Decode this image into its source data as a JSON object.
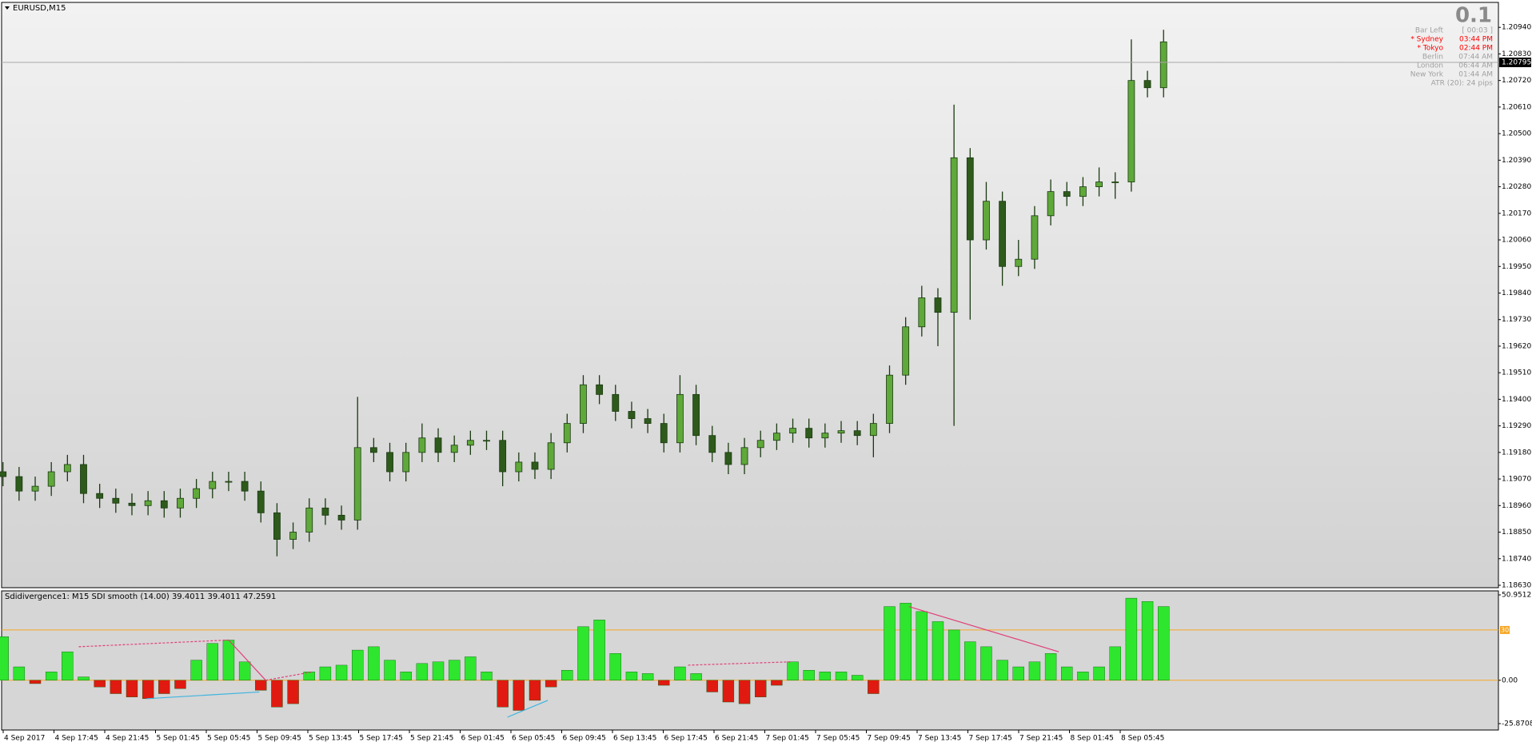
{
  "chart_data": [
    {
      "type": "candlestick",
      "title": "EURUSD,M15",
      "open": [
        1.191,
        1.1908,
        1.1902,
        1.1904,
        1.191,
        1.1913,
        1.1901,
        1.1899,
        1.1897,
        1.1896,
        1.1898,
        1.1895,
        1.1899,
        1.1903,
        1.1906,
        1.1906,
        1.1902,
        1.1893,
        1.1882,
        1.1885,
        1.1895,
        1.1892,
        1.189,
        1.192,
        1.1918,
        1.191,
        1.1918,
        1.1924,
        1.1918,
        1.1921,
        1.1923,
        1.1923,
        1.191,
        1.1914,
        1.1911,
        1.1922,
        1.193,
        1.1946,
        1.1942,
        1.1935,
        1.1932,
        1.193,
        1.1922,
        1.1942,
        1.1925,
        1.1918,
        1.1913,
        1.192,
        1.1923,
        1.1926,
        1.1928,
        1.1924,
        1.1926,
        1.1927,
        1.1925,
        1.193,
        1.195,
        1.197,
        1.1982,
        1.1976,
        1.204,
        1.2006,
        1.2022,
        1.1995,
        1.1998,
        1.2016,
        1.2026,
        1.2024,
        1.2028,
        1.203,
        1.203,
        1.2072,
        1.2069
      ],
      "high": [
        1.1914,
        1.1912,
        1.1908,
        1.1914,
        1.1917,
        1.1917,
        1.1905,
        1.1903,
        1.1901,
        1.1902,
        1.1902,
        1.1903,
        1.1907,
        1.191,
        1.191,
        1.191,
        1.1906,
        1.1897,
        1.1889,
        1.1899,
        1.1899,
        1.1896,
        1.1941,
        1.1924,
        1.1922,
        1.1922,
        1.193,
        1.1928,
        1.1925,
        1.1927,
        1.1927,
        1.1927,
        1.1918,
        1.1918,
        1.1926,
        1.1934,
        1.195,
        1.195,
        1.1946,
        1.1939,
        1.1936,
        1.1934,
        1.195,
        1.1946,
        1.1929,
        1.1922,
        1.1924,
        1.1927,
        1.193,
        1.1932,
        1.1932,
        1.193,
        1.1931,
        1.1931,
        1.1934,
        1.1954,
        1.1974,
        1.1987,
        1.1986,
        1.2062,
        1.2044,
        1.203,
        1.2026,
        1.2006,
        1.202,
        1.2031,
        1.203,
        1.2032,
        1.2036,
        1.2034,
        1.2089,
        1.2076,
        1.2093
      ],
      "low": [
        1.1904,
        1.1898,
        1.1898,
        1.19,
        1.1906,
        1.1897,
        1.1895,
        1.1893,
        1.1892,
        1.1892,
        1.1891,
        1.1891,
        1.1895,
        1.1899,
        1.1902,
        1.1898,
        1.1889,
        1.1875,
        1.1878,
        1.1881,
        1.1888,
        1.1886,
        1.1886,
        1.1914,
        1.1906,
        1.1906,
        1.1914,
        1.1914,
        1.1914,
        1.1917,
        1.1919,
        1.1904,
        1.1906,
        1.1907,
        1.1907,
        1.1918,
        1.1926,
        1.1938,
        1.1931,
        1.1928,
        1.1926,
        1.1918,
        1.1918,
        1.1921,
        1.1914,
        1.1909,
        1.1909,
        1.1916,
        1.1919,
        1.1922,
        1.192,
        1.192,
        1.1922,
        1.1921,
        1.1916,
        1.1926,
        1.1946,
        1.1966,
        1.1962,
        1.1929,
        1.1973,
        1.2002,
        1.1987,
        1.1991,
        1.1994,
        1.2012,
        1.202,
        1.202,
        1.2024,
        1.2023,
        1.2026,
        1.2065,
        1.2065
      ],
      "close": [
        1.1908,
        1.1902,
        1.1904,
        1.191,
        1.1913,
        1.1901,
        1.1899,
        1.1897,
        1.1896,
        1.1898,
        1.1895,
        1.1899,
        1.1903,
        1.1906,
        1.1906,
        1.1902,
        1.1893,
        1.1882,
        1.1885,
        1.1895,
        1.1892,
        1.189,
        1.192,
        1.1918,
        1.191,
        1.1918,
        1.1924,
        1.1918,
        1.1921,
        1.1923,
        1.1923,
        1.191,
        1.1914,
        1.1911,
        1.1922,
        1.193,
        1.1946,
        1.1942,
        1.1935,
        1.1932,
        1.193,
        1.1922,
        1.1942,
        1.1925,
        1.1918,
        1.1913,
        1.192,
        1.1923,
        1.1926,
        1.1928,
        1.1924,
        1.1926,
        1.1927,
        1.1925,
        1.193,
        1.195,
        1.197,
        1.1982,
        1.1976,
        1.204,
        1.2006,
        1.2022,
        1.1995,
        1.1998,
        1.2016,
        1.2026,
        1.2024,
        1.2028,
        1.203,
        1.203,
        1.2072,
        1.2069,
        1.2088
      ],
      "up_color": "#5fa83a",
      "down_color": "#2e5a1c",
      "ylim": [
        1.1862,
        1.2104
      ],
      "yticks": [
        {
          "value": 1.2094,
          "label": "1.20940"
        },
        {
          "value": 1.2083,
          "label": "1.20830"
        },
        {
          "value": 1.2072,
          "label": "1.20720"
        },
        {
          "value": 1.2061,
          "label": "1.20610"
        },
        {
          "value": 1.205,
          "label": "1.20500"
        },
        {
          "value": 1.2039,
          "label": "1.20390"
        },
        {
          "value": 1.2028,
          "label": "1.20280"
        },
        {
          "value": 1.2017,
          "label": "1.20170"
        },
        {
          "value": 1.2006,
          "label": "1.20060"
        },
        {
          "value": 1.1995,
          "label": "1.19950"
        },
        {
          "value": 1.1984,
          "label": "1.19840"
        },
        {
          "value": 1.1973,
          "label": "1.19730"
        },
        {
          "value": 1.1962,
          "label": "1.19620"
        },
        {
          "value": 1.1951,
          "label": "1.19510"
        },
        {
          "value": 1.194,
          "label": "1.19400"
        },
        {
          "value": 1.1929,
          "label": "1.19290"
        },
        {
          "value": 1.1918,
          "label": "1.19180"
        },
        {
          "value": 1.1907,
          "label": "1.19070"
        },
        {
          "value": 1.1896,
          "label": "1.18960"
        },
        {
          "value": 1.1885,
          "label": "1.18850"
        },
        {
          "value": 1.1874,
          "label": "1.18740"
        },
        {
          "value": 1.1863,
          "label": "1.18630"
        }
      ],
      "current_price": {
        "value": 1.20795,
        "label": "1.20795"
      },
      "spread": "0.1",
      "info": [
        {
          "name": "Bar Left",
          "value": "[ 00:03 ]",
          "color": "#a0a0a0"
        },
        {
          "name": "* Sydney",
          "value": "03:44 PM",
          "color": "#ff0000"
        },
        {
          "name": "* Tokyo",
          "value": "02:44 PM",
          "color": "#ff0000"
        },
        {
          "name": "Berlin",
          "value": "07:44 AM",
          "color": "#a0a0a0"
        },
        {
          "name": "London",
          "value": "06:44 AM",
          "color": "#a0a0a0"
        },
        {
          "name": "New York",
          "value": "01:44 AM",
          "color": "#a0a0a0"
        }
      ],
      "atr": "ATR (20): 24 pips"
    },
    {
      "type": "bar",
      "title": "Sdidivergence1:  M15   SDI smooth (14.00) 39.4011 39.4011 47.2591",
      "values": [
        26,
        8,
        -2,
        5,
        17,
        2,
        -4,
        -8,
        -10,
        -11,
        -8,
        -5,
        12,
        22,
        24,
        11,
        -6,
        -16,
        -14,
        5,
        8,
        9,
        18,
        20,
        12,
        5,
        10,
        11,
        12,
        14,
        5,
        -16,
        -18,
        -12,
        -4,
        6,
        32,
        36,
        16,
        5,
        4,
        -3,
        8,
        4,
        -7,
        -13,
        -14,
        -10,
        -3,
        11,
        6,
        5,
        5,
        3,
        -8,
        44,
        46,
        41,
        35,
        30,
        23,
        20,
        12,
        8,
        11,
        16,
        8,
        5,
        8,
        20,
        49,
        47,
        44
      ],
      "up_color": "#2ee62e",
      "down_color": "#e01a10",
      "ylim": [
        -25.8708,
        50.9512
      ],
      "yticks": [
        50.9512,
        {
          "value": 0,
          "label": "0.00"
        },
        -25.8708
      ],
      "levels": [
        0,
        30
      ],
      "level_color": "#f5a623",
      "divergences": [
        {
          "points": [
            4.7,
            20,
            14,
            24
          ],
          "color": "#e0407a",
          "dashed": true
        },
        {
          "points": [
            14,
            24,
            16.3,
            0
          ],
          "color": "#e0407a",
          "dashed": false
        },
        {
          "points": [
            16.3,
            0,
            19.2,
            5
          ],
          "color": "#e0407a",
          "dashed": true
        },
        {
          "points": [
            8.9,
            -11,
            15.9,
            -7
          ],
          "color": "#3fb4e0",
          "dashed": false
        },
        {
          "points": [
            31.3,
            -22,
            33.8,
            -12
          ],
          "color": "#3fb4e0",
          "dashed": false
        },
        {
          "points": [
            42.5,
            9,
            48.9,
            11
          ],
          "color": "#e0407a",
          "dashed": true
        },
        {
          "points": [
            56.2,
            44,
            65.5,
            17
          ],
          "color": "#e0407a",
          "dashed": false
        }
      ]
    }
  ],
  "time_labels": [
    "4 Sep 2017",
    "4 Sep 17:45",
    "4 Sep 21:45",
    "5 Sep 01:45",
    "5 Sep 05:45",
    "5 Sep 09:45",
    "5 Sep 13:45",
    "5 Sep 17:45",
    "5 Sep 21:45",
    "6 Sep 01:45",
    "6 Sep 05:45",
    "6 Sep 09:45",
    "6 Sep 13:45",
    "6 Sep 17:45",
    "6 Sep 21:45",
    "7 Sep 01:45",
    "7 Sep 05:45",
    "7 Sep 09:45",
    "7 Sep 13:45",
    "7 Sep 17:45",
    "7 Sep 21:45",
    "8 Sep 01:45",
    "8 Sep 05:45"
  ]
}
